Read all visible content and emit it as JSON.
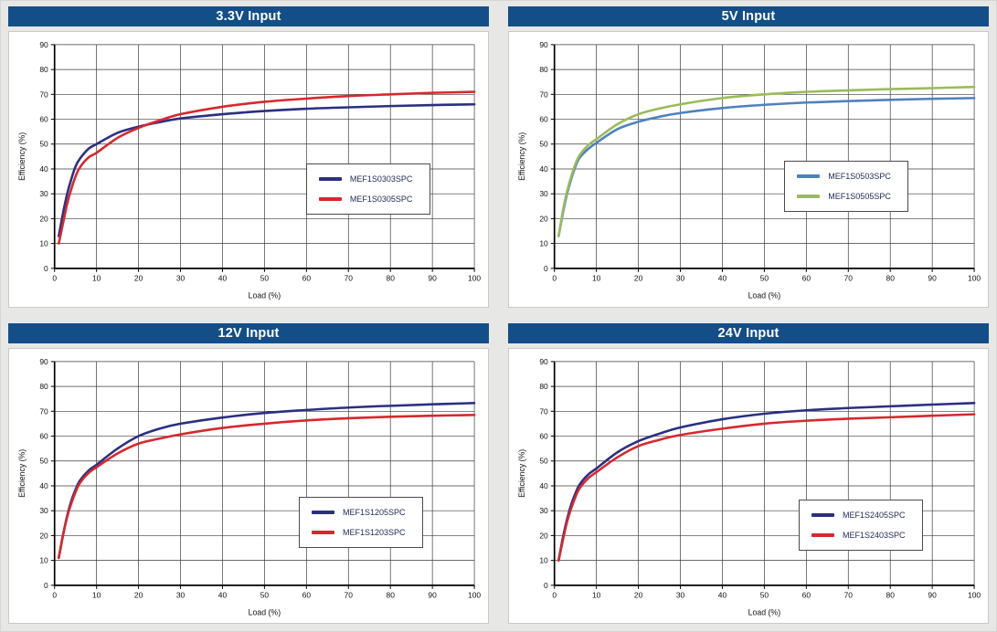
{
  "page_background": "#e7e7e6",
  "header_bar_color": "#134e88",
  "grid_line_color": "#3c3c3c",
  "chart_data": [
    {
      "type": "line",
      "title": "3.3V Input",
      "xlabel": "Load (%)",
      "ylabel": "Efficiency (%)",
      "xlim": [
        0,
        100
      ],
      "ylim": [
        0,
        90
      ],
      "x_tick_step": 10,
      "y_tick_step": 10,
      "grid": true,
      "legend_position": "lower right",
      "x": [
        1,
        2,
        3,
        4,
        5,
        6,
        8,
        10,
        15,
        20,
        25,
        30,
        40,
        50,
        60,
        70,
        80,
        90,
        100
      ],
      "series": [
        {
          "name": "MEF1S0303SPC",
          "color": "#2b2f82",
          "values": [
            13,
            22,
            30,
            36,
            41,
            44,
            48,
            50,
            54.5,
            57,
            58.8,
            60.3,
            62,
            63.3,
            64.2,
            64.8,
            65.3,
            65.7,
            66
          ]
        },
        {
          "name": "MEF1S0305SPC",
          "color": "#d7282e",
          "values": [
            10,
            18,
            26,
            32,
            37,
            40.5,
            44.5,
            46.5,
            52.5,
            56.5,
            59.5,
            62,
            65,
            67,
            68.3,
            69.3,
            70,
            70.6,
            71
          ]
        }
      ]
    },
    {
      "type": "line",
      "title": "5V Input",
      "xlabel": "Load (%)",
      "ylabel": "Efficiency (%)",
      "xlim": [
        0,
        100
      ],
      "ylim": [
        0,
        90
      ],
      "x_tick_step": 10,
      "y_tick_step": 10,
      "grid": true,
      "legend_position": "lower right",
      "x": [
        1,
        2,
        3,
        4,
        5,
        6,
        8,
        10,
        15,
        20,
        25,
        30,
        40,
        50,
        60,
        70,
        80,
        90,
        100
      ],
      "series": [
        {
          "name": "MEF1S0503SPC",
          "color": "#4f81bd",
          "values": [
            13,
            22,
            30,
            36,
            41,
            44.5,
            48,
            50.5,
            56,
            59,
            61,
            62.5,
            64.5,
            65.8,
            66.7,
            67.3,
            67.8,
            68.2,
            68.5
          ]
        },
        {
          "name": "MEF1S0505SPC",
          "color": "#9bbb59",
          "values": [
            13,
            23,
            31,
            37,
            42,
            45.5,
            49.5,
            52,
            58,
            62,
            64.3,
            66,
            68.5,
            70,
            71,
            71.6,
            72.1,
            72.5,
            73
          ]
        }
      ]
    },
    {
      "type": "line",
      "title": "12V Input",
      "xlabel": "Load (%)",
      "ylabel": "Efficiency (%)",
      "xlim": [
        0,
        100
      ],
      "ylim": [
        0,
        90
      ],
      "x_tick_step": 10,
      "y_tick_step": 10,
      "grid": true,
      "legend_position": "lower right",
      "x": [
        1,
        2,
        3,
        4,
        5,
        6,
        8,
        10,
        15,
        20,
        25,
        30,
        40,
        50,
        60,
        70,
        80,
        90,
        100
      ],
      "series": [
        {
          "name": "MEF1S1205SPC",
          "color": "#2b2f82",
          "values": [
            11,
            20,
            28,
            34,
            38.5,
            42,
            46,
            48.5,
            55,
            60,
            63,
            65,
            67.5,
            69.3,
            70.5,
            71.5,
            72.2,
            72.8,
            73.3
          ]
        },
        {
          "name": "MEF1S1203SPC",
          "color": "#d7282e",
          "values": [
            11,
            20,
            27.5,
            33,
            37.5,
            41,
            45,
            47.5,
            53,
            57,
            59,
            60.7,
            63.3,
            65,
            66.3,
            67.2,
            67.8,
            68.2,
            68.5
          ]
        }
      ]
    },
    {
      "type": "line",
      "title": "24V Input",
      "xlabel": "Load (%)",
      "ylabel": "Efficiency (%)",
      "xlim": [
        0,
        100
      ],
      "ylim": [
        0,
        90
      ],
      "x_tick_step": 10,
      "y_tick_step": 10,
      "grid": true,
      "legend_position": "lower right",
      "x": [
        1,
        2,
        3,
        4,
        5,
        6,
        8,
        10,
        15,
        20,
        25,
        30,
        40,
        50,
        60,
        70,
        80,
        90,
        100
      ],
      "series": [
        {
          "name": "MEF1S2405SPC",
          "color": "#2b2f82",
          "values": [
            10,
            19,
            26.5,
            32.5,
            37,
            40.5,
            44.5,
            47,
            53.5,
            58,
            61,
            63.5,
            66.8,
            69,
            70.4,
            71.3,
            72,
            72.7,
            73.3
          ]
        },
        {
          "name": "MEF1S2403SPC",
          "color": "#d7282e",
          "values": [
            10,
            18,
            25.5,
            31,
            35.5,
            39,
            43,
            45.5,
            51.5,
            56,
            58.5,
            60.5,
            63,
            65,
            66.2,
            67,
            67.6,
            68.2,
            68.8
          ]
        }
      ]
    }
  ]
}
